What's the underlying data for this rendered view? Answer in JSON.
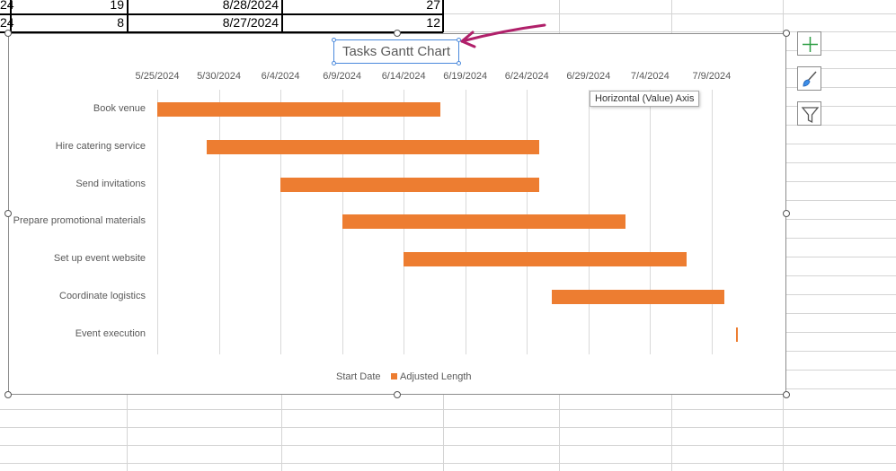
{
  "sheet": {
    "rows": [
      {
        "col_a": "24",
        "col_b": "19",
        "col_c": "8/28/2024",
        "col_d": "27"
      },
      {
        "col_a": "24",
        "col_b": "8",
        "col_c": "8/27/2024",
        "col_d": "12"
      }
    ]
  },
  "chart": {
    "title": "Tasks Gantt Chart",
    "tooltip": "Horizontal (Value) Axis",
    "legend": {
      "start": "Start Date",
      "length": "Adjusted Length"
    },
    "colors": {
      "bar": "#ed7d31",
      "annotation_arrow": "#b0206a"
    }
  },
  "side_buttons": [
    "chart-elements-icon",
    "chart-styles-icon",
    "chart-filters-icon"
  ],
  "chart_data": {
    "type": "bar",
    "orientation": "horizontal",
    "title": "Tasks Gantt Chart",
    "x_axis_position": "top",
    "x_ticks": [
      "5/25/2024",
      "5/30/2024",
      "6/4/2024",
      "6/9/2024",
      "6/14/2024",
      "6/19/2024",
      "6/24/2024",
      "6/29/2024",
      "7/4/2024",
      "7/9/2024"
    ],
    "xlim": [
      "5/25/2024",
      "7/12/2024"
    ],
    "categories": [
      "Book venue",
      "Hire catering service",
      "Send invitations",
      "Prepare promotional materials",
      "Set up event website",
      "Coordinate logistics",
      "Event execution"
    ],
    "series": [
      {
        "name": "Start Date",
        "values": [
          "5/25/2024",
          "5/29/2024",
          "6/4/2024",
          "6/9/2024",
          "6/14/2024",
          "6/26/2024",
          "7/11/2024"
        ]
      },
      {
        "name": "Adjusted Length",
        "values": [
          23,
          27,
          21,
          23,
          23,
          14,
          0
        ]
      }
    ],
    "legend": "bottom",
    "grid": true
  }
}
